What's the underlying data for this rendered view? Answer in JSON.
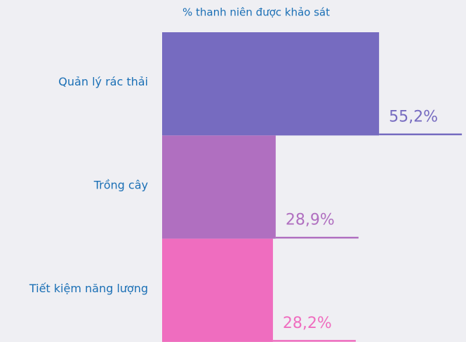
{
  "chart_data": {
    "type": "barh",
    "title": "% thanh niên được khảo sát",
    "categories": [
      "Quản lý rác thải",
      "Trồng cây",
      "Tiết kiệm năng lượng"
    ],
    "values": [
      55.2,
      28.9,
      28.2
    ],
    "value_labels": [
      "55,2%",
      "28,9%",
      "28,2%"
    ],
    "colors": [
      "#766bc0",
      "#b06fc0",
      "#ef6dbf"
    ]
  }
}
